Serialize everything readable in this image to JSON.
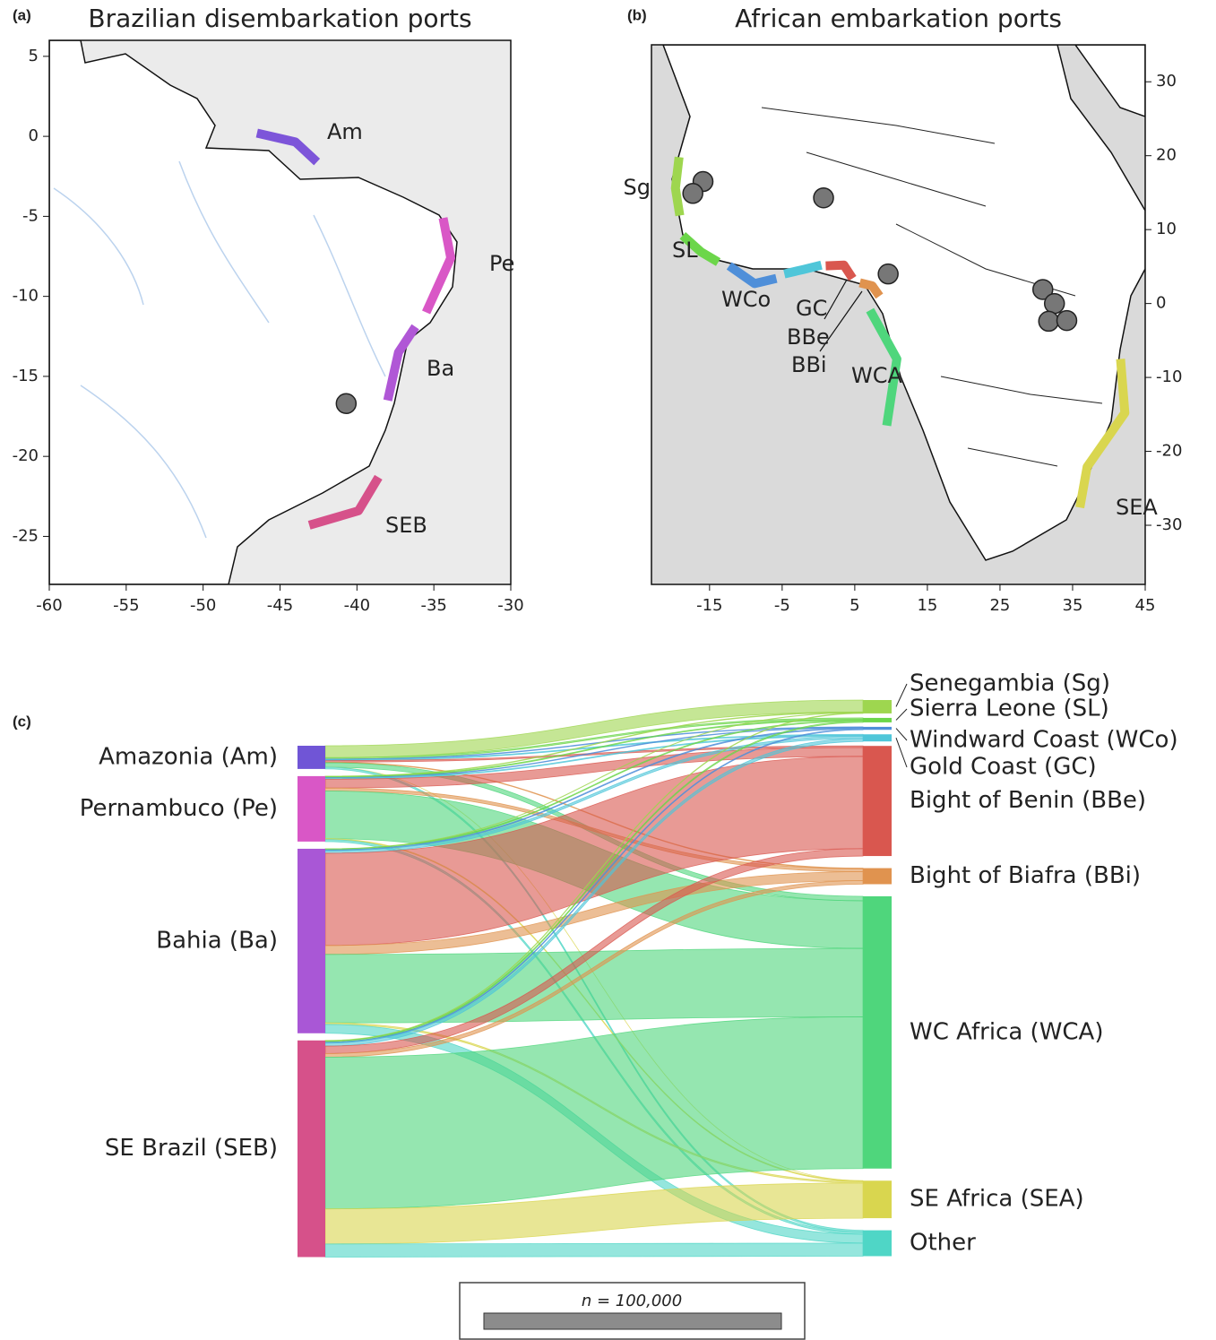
{
  "chart_data": [
    {
      "type": "map",
      "panel": "(a)",
      "title": "Brazilian disembarkation ports",
      "xlim": [
        -60,
        -30
      ],
      "ylim": [
        -28,
        6
      ],
      "xticks": [
        -60,
        -55,
        -50,
        -45,
        -40,
        -35,
        -30
      ],
      "yticks": [
        5,
        0,
        -5,
        -10,
        -15,
        -20,
        -25
      ],
      "regions": [
        {
          "name": "Am",
          "color": "#7d55d9",
          "lon": [
            -46.5,
            -44.0,
            -42.6
          ],
          "lat": [
            0.2,
            -0.35,
            -1.6
          ]
        },
        {
          "name": "Pe",
          "color": "#d957c6",
          "lon": [
            -34.4,
            -33.9,
            -35.5
          ],
          "lat": [
            -5.1,
            -7.6,
            -11.0
          ]
        },
        {
          "name": "Ba",
          "color": "#b057d6",
          "lon": [
            -36.2,
            -37.3,
            -38.0
          ],
          "lat": [
            -11.9,
            -13.5,
            -16.5
          ]
        },
        {
          "name": "SEB",
          "color": "#d6518a",
          "lon": [
            -38.6,
            -39.9,
            -43.1
          ],
          "lat": [
            -21.3,
            -23.4,
            -24.3
          ]
        }
      ],
      "points": {
        "lon": [
          -40.7
        ],
        "lat": [
          -16.7
        ]
      }
    },
    {
      "type": "map",
      "panel": "(b)",
      "title": "African embarkation ports",
      "xlim": [
        -23,
        45
      ],
      "ylim": [
        -38,
        35
      ],
      "xticks": [
        -15,
        -5,
        5,
        15,
        25,
        35,
        45
      ],
      "yticks": [
        30,
        20,
        10,
        0,
        -10,
        -20,
        -30
      ],
      "regions": [
        {
          "name": "Sg",
          "color": "#9ed64f",
          "lon": [
            -19.2,
            -19.7,
            -19.1
          ],
          "lat": [
            19.8,
            15.6,
            11.9
          ]
        },
        {
          "name": "SL",
          "color": "#6cd64a",
          "lon": [
            -18.7,
            -16.2,
            -13.8
          ],
          "lat": [
            9.2,
            7.0,
            5.6
          ]
        },
        {
          "name": "WCo",
          "color": "#4f8fd9",
          "lon": [
            -12.3,
            -8.8,
            -5.8
          ],
          "lat": [
            5.1,
            2.7,
            3.4
          ]
        },
        {
          "name": "GC",
          "color": "#4fc6d9",
          "lon": [
            -4.7,
            -2.1,
            0.4
          ],
          "lat": [
            4.0,
            4.6,
            5.2
          ]
        },
        {
          "name": "BBe",
          "color": "#d9574f",
          "lon": [
            1.0,
            3.5,
            4.7
          ],
          "lat": [
            5.1,
            5.2,
            3.4
          ]
        },
        {
          "name": "BBi",
          "color": "#e0934f",
          "lon": [
            5.7,
            7.4,
            8.4
          ],
          "lat": [
            2.8,
            2.4,
            1.0
          ]
        },
        {
          "name": "WCA",
          "color": "#4fd67c",
          "lon": [
            7.1,
            10.8,
            9.4
          ],
          "lat": [
            -0.9,
            -7.5,
            -16.5
          ]
        },
        {
          "name": "SEA",
          "color": "#d9d64f",
          "lon": [
            41.6,
            42.2,
            37.0,
            36.0
          ],
          "lat": [
            -7.5,
            -14.8,
            -22.1,
            -27.6
          ]
        }
      ],
      "points": {
        "lon": [
          -15.9,
          -17.3,
          0.7,
          9.6,
          30.9,
          32.5,
          31.7,
          34.2
        ],
        "lat": [
          16.5,
          14.9,
          14.3,
          4.0,
          1.9,
          0,
          -2.4,
          -2.3
        ]
      }
    },
    {
      "type": "sankey",
      "panel": "(c)",
      "categories": [
        "Senegambia (Sg)",
        "Sierra Leone (SL)",
        "Windward Coast (WCo)",
        "Gold Coast (GC)",
        "Bight of Benin (BBe)",
        "Bight of Biafra (BBi)",
        "WC Africa (WCA)",
        "SE Africa (SEA)",
        "Other"
      ],
      "category_colors": [
        "#9ed64f",
        "#6cd64a",
        "#4f8fd9",
        "#4fc6d9",
        "#d9574f",
        "#e0934f",
        "#4fd67c",
        "#d9d64f",
        "#4fd6c6"
      ],
      "series": [
        {
          "name": "Amazonia (Am)",
          "color": "#7055d6",
          "values": [
            4000,
            500,
            200,
            300,
            500,
            200,
            1500,
            0,
            600
          ]
        },
        {
          "name": "Pernambuco (Pe)",
          "color": "#d957c6",
          "values": [
            200,
            300,
            200,
            300,
            3000,
            1000,
            16000,
            300,
            700
          ]
        },
        {
          "name": "Bahia (Ba)",
          "color": "#a957d6",
          "values": [
            100,
            300,
            300,
            800,
            31000,
            3000,
            23000,
            500,
            3000
          ]
        },
        {
          "name": "SE Brazil (SEB)",
          "color": "#d6518a",
          "values": [
            200,
            400,
            300,
            1000,
            2500,
            1200,
            51000,
            11800,
            4400
          ]
        }
      ],
      "scale": {
        "value": 100000,
        "label": "n = 100,000"
      }
    }
  ]
}
